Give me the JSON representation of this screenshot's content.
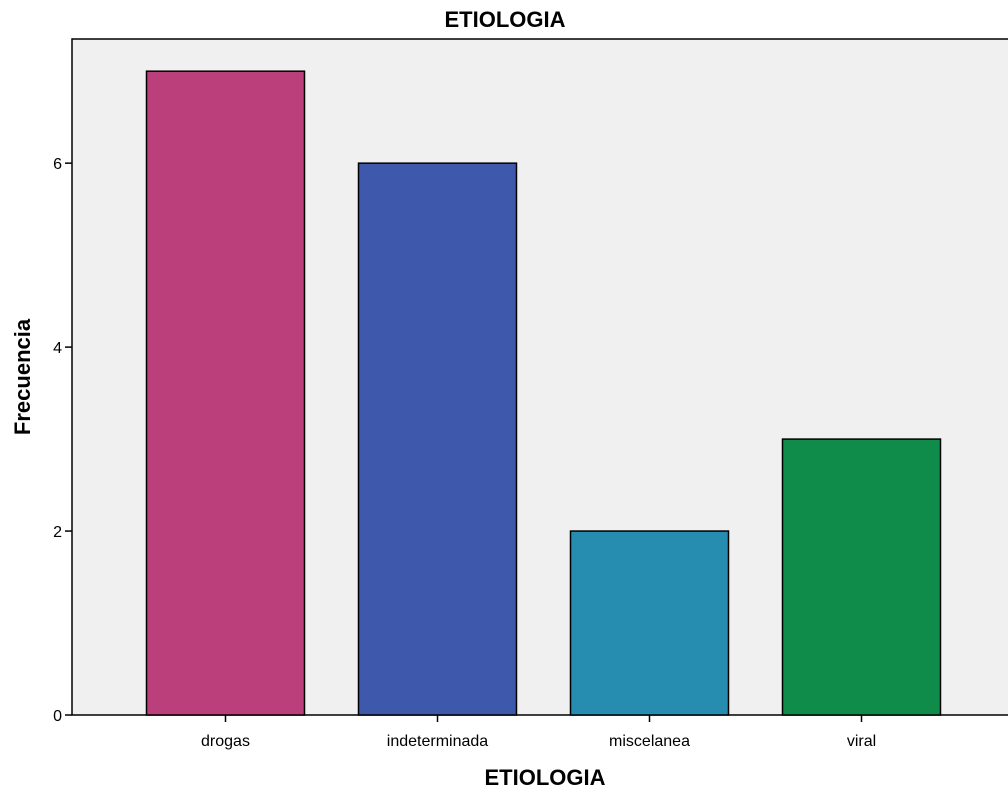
{
  "chart_data": {
    "type": "bar",
    "title": "ETIOLOGIA",
    "xlabel": "ETIOLOGIA",
    "ylabel": "Frecuencia",
    "categories": [
      "drogas",
      "indeterminada",
      "miscelanea",
      "viral"
    ],
    "values": [
      7,
      6,
      2,
      3
    ],
    "bar_colors": [
      "#bb3f7b",
      "#3e59ac",
      "#268cb0",
      "#0f8c4a"
    ],
    "yticks": [
      0,
      2,
      4,
      6
    ],
    "ylim": [
      0,
      7.35
    ],
    "grid": false,
    "legend": "none",
    "plot_background": "#f0f0f0"
  }
}
